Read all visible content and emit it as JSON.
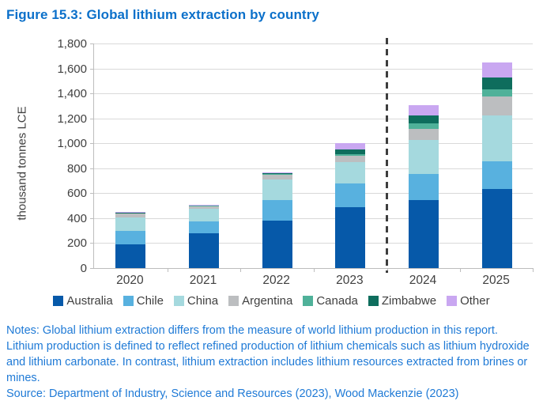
{
  "title": "Figure 15.3: Global lithium extraction by country",
  "notes": "Notes: Global lithium extraction differs from the measure of world lithium production in this report. Lithium production is defined to reflect refined production of lithium chemicals such as lithium hydroxide and lithium carbonate. In contrast, lithium extraction includes lithium resources extracted from brines or mines.",
  "source": "Source: Department of Industry, Science and Resources (2023), Wood Mackenzie (2023)",
  "colors": {
    "title_text": "#0B70CA",
    "body_text": "#1F7AD6",
    "axis_text": "#404040",
    "gridline": "#D9D9D9",
    "axis_line": "#BDBDBD",
    "forecast_divider": "#3D3D3D"
  },
  "chart_data": {
    "type": "bar",
    "stacked": true,
    "title": "",
    "categories": [
      "2020",
      "2021",
      "2022",
      "2023",
      "2024",
      "2025"
    ],
    "xlabel": "",
    "ylabel": "thousand tonnes LCE",
    "ylim": [
      0,
      1800
    ],
    "ytick_step": 200,
    "grid": true,
    "legend_position": "bottom",
    "forecast_divider_after": "2023",
    "series": [
      {
        "name": "Australia",
        "color": "#0659A9",
        "values": [
          190,
          280,
          380,
          490,
          545,
          635
        ]
      },
      {
        "name": "Chile",
        "color": "#58B1DF",
        "values": [
          105,
          95,
          165,
          190,
          210,
          220
        ]
      },
      {
        "name": "China",
        "color": "#A5D9DE",
        "values": [
          110,
          100,
          165,
          170,
          270,
          370
        ]
      },
      {
        "name": "Argentina",
        "color": "#BCBEC0",
        "values": [
          30,
          22,
          40,
          50,
          90,
          150
        ]
      },
      {
        "name": "Canada",
        "color": "#4FB199",
        "values": [
          4,
          3,
          5,
          12,
          45,
          55
        ]
      },
      {
        "name": "Zimbabwe",
        "color": "#0E6D5D",
        "values": [
          2,
          2,
          3,
          40,
          65,
          100
        ]
      },
      {
        "name": "Other",
        "color": "#C9A7F1",
        "values": [
          12,
          8,
          12,
          48,
          80,
          120
        ]
      }
    ],
    "totals": [
      453,
      510,
      770,
      1000,
      1305,
      1650
    ]
  }
}
